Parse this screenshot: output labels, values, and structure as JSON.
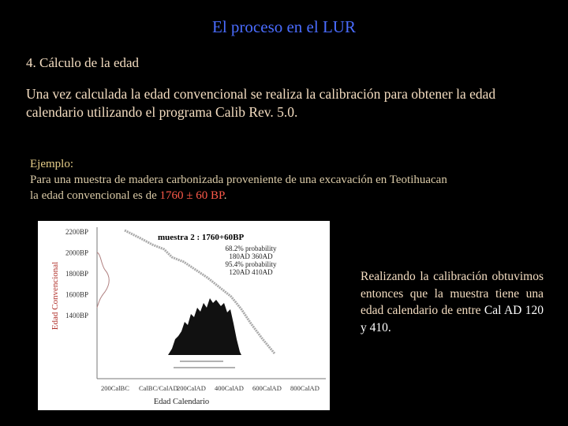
{
  "header": {
    "title": "El proceso en el LUR"
  },
  "section": {
    "heading": "4. Cálculo de la edad",
    "paragraph": "Una vez calculada la edad convencional se realiza la calibración para obtener la edad calendario utilizando el programa Calib Rev. 5.0."
  },
  "example": {
    "label": "Ejemplo:",
    "line1": "Para una muestra de madera carbonizada proveniente de una excavación en Teotihuacan",
    "line2_start": "la edad convencional es de ",
    "line2_value": "1760 ± 60 BP",
    "line2_end": "."
  },
  "figure": {
    "title": "muestra 2 : 1760+60BP",
    "y_labels": [
      "2200BP",
      "2000BP",
      "1800BP",
      "1600BP",
      "1400BP"
    ],
    "x_labels": [
      "200CalBC",
      "CalBC/CalAD",
      "200CalAD",
      "400CalAD",
      "600CalAD",
      "800CalAD"
    ],
    "probability": [
      "68.2% probability",
      "180AD  360AD",
      "95.4% probability",
      "120AD  410AD"
    ],
    "y_title": "Edad Convencional",
    "x_title": "Edad Calendario"
  },
  "result": {
    "text": "Realizando la calibración obtuvimos entonces que la muestra tiene una edad calendario de entre ",
    "range": "Cal AD 120 y 410."
  }
}
